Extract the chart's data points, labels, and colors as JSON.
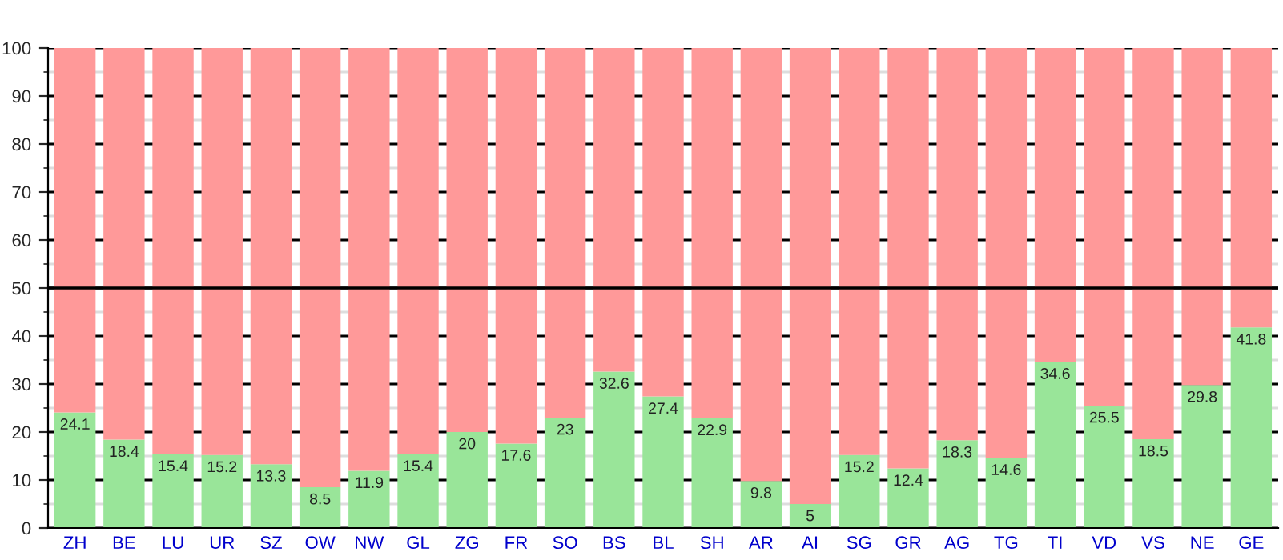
{
  "chart_data": {
    "type": "bar",
    "stacked": true,
    "categories": [
      "ZH",
      "BE",
      "LU",
      "UR",
      "SZ",
      "OW",
      "NW",
      "GL",
      "ZG",
      "FR",
      "SO",
      "BS",
      "BL",
      "SH",
      "AR",
      "AI",
      "SG",
      "GR",
      "AG",
      "TG",
      "TI",
      "VD",
      "VS",
      "NE",
      "GE"
    ],
    "series": [
      {
        "color": "#99e599",
        "values": [
          24.1,
          18.4,
          15.4,
          15.2,
          13.3,
          8.5,
          11.9,
          15.4,
          20,
          17.6,
          23,
          32.6,
          27.4,
          22.9,
          9.8,
          5,
          15.2,
          12.4,
          18.3,
          14.6,
          34.6,
          25.5,
          18.5,
          29.8,
          41.8
        ],
        "value_labels": [
          "24.1",
          "18.4",
          "15.4",
          "15.2",
          "13.3",
          "8.5",
          "11.9",
          "15.4",
          "20",
          "17.6",
          "23",
          "32.6",
          "27.4",
          "22.9",
          "9.8",
          "5",
          "15.2",
          "12.4",
          "18.3",
          "14.6",
          "34.6",
          "25.5",
          "18.5",
          "29.8",
          "41.8"
        ]
      },
      {
        "color": "#ff9999",
        "values": [
          75.9,
          81.6,
          84.6,
          84.8,
          86.7,
          91.5,
          88.1,
          84.6,
          80,
          82.4,
          77,
          67.4,
          72.6,
          77.1,
          90.2,
          95,
          84.8,
          87.6,
          81.7,
          85.4,
          65.4,
          74.5,
          81.5,
          70.2,
          58.2
        ]
      }
    ],
    "ylim": [
      0,
      100
    ],
    "yticks": [
      0,
      10,
      20,
      30,
      40,
      50,
      60,
      70,
      80,
      90,
      100
    ],
    "grid": "y",
    "ref_lines": [
      {
        "axis": "y",
        "value": 50,
        "color": "#000000"
      }
    ]
  }
}
